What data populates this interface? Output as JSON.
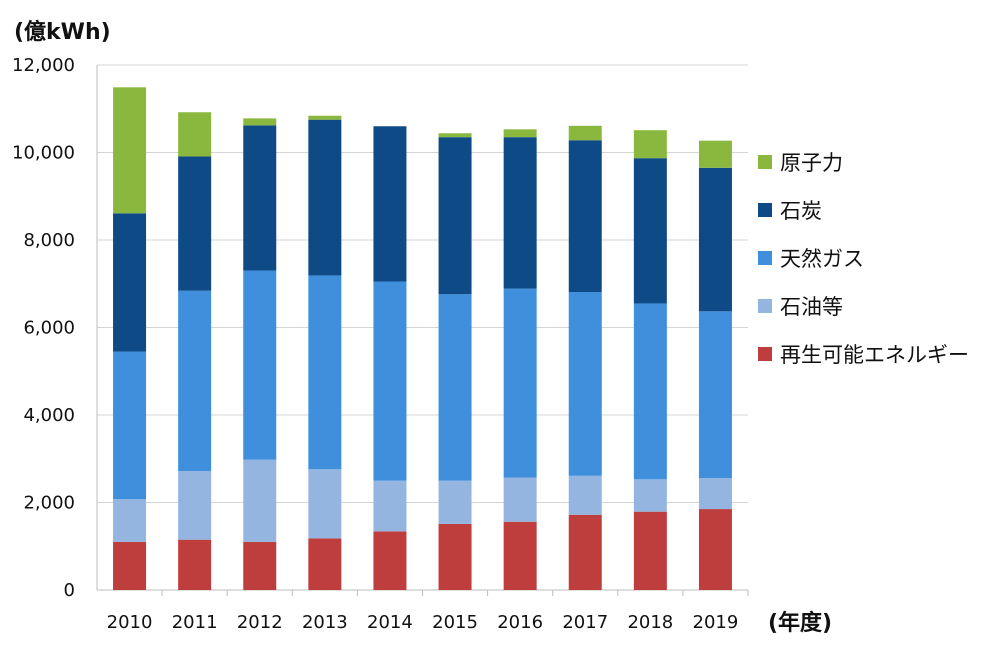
{
  "chart_data": {
    "type": "bar",
    "stacked": true,
    "y_unit_label": "(億kWh)",
    "x_unit_label": "(年度)",
    "categories": [
      "2010",
      "2011",
      "2012",
      "2013",
      "2014",
      "2015",
      "2016",
      "2017",
      "2018",
      "2019"
    ],
    "series": [
      {
        "name": "再生可能エネルギー",
        "color": "#be3d3d",
        "values": [
          1100,
          1150,
          1100,
          1180,
          1340,
          1510,
          1560,
          1720,
          1790,
          1850
        ]
      },
      {
        "name": "石油等",
        "color": "#93b5df",
        "values": [
          980,
          1570,
          1880,
          1580,
          1160,
          990,
          1010,
          890,
          740,
          710
        ]
      },
      {
        "name": "天然ガス",
        "color": "#3f8fdd",
        "values": [
          3370,
          4120,
          4320,
          4430,
          4550,
          4260,
          4320,
          4200,
          4020,
          3810
        ]
      },
      {
        "name": "石炭",
        "color": "#0e4a86",
        "values": [
          3160,
          3070,
          3320,
          3560,
          3550,
          3590,
          3460,
          3470,
          3320,
          3280
        ]
      },
      {
        "name": "原子力",
        "color": "#8ab83f",
        "values": [
          2880,
          1010,
          160,
          90,
          0,
          90,
          180,
          330,
          640,
          620
        ]
      }
    ],
    "legend_order": [
      "原子力",
      "石炭",
      "天然ガス",
      "石油等",
      "再生可能エネルギー"
    ],
    "ylim": [
      0,
      12000
    ],
    "yticks": [
      "0",
      "2,000",
      "4,000",
      "6,000",
      "8,000",
      "10,000",
      "12,000"
    ],
    "grid": true,
    "legend_position": "right"
  }
}
